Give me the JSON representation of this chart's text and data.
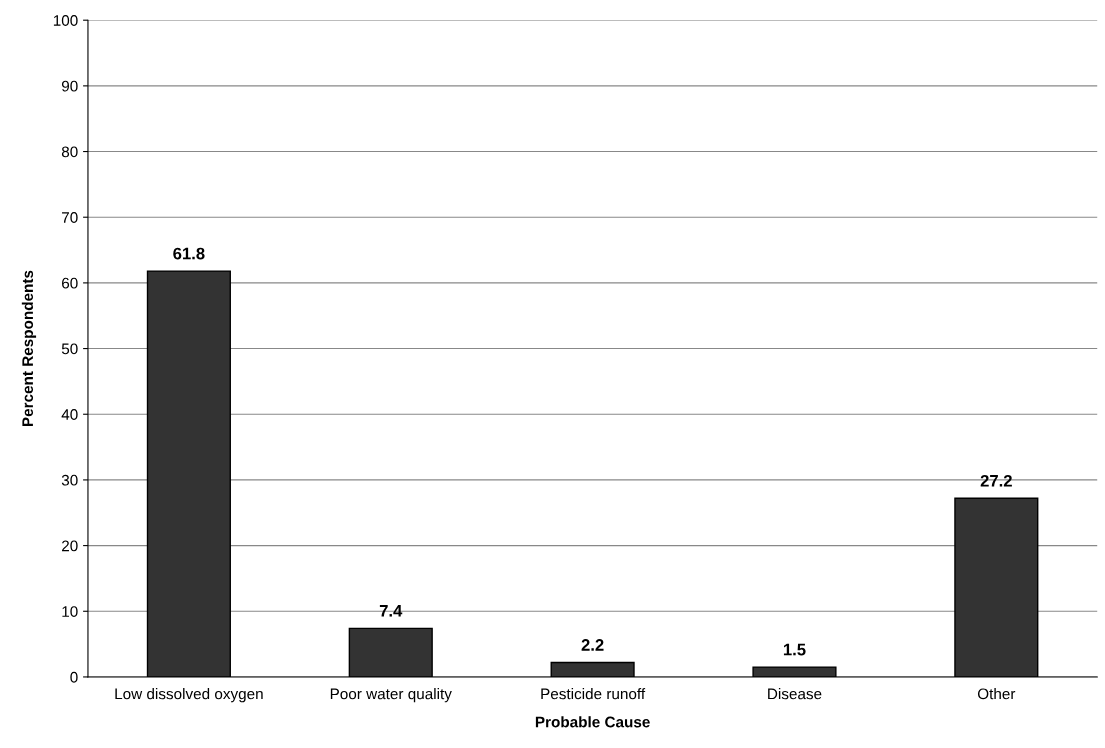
{
  "chart_data": {
    "type": "bar",
    "xlabel": "Probable Cause",
    "ylabel": "Percent Respondents",
    "categories": [
      "Low dissolved oxygen",
      "Poor water quality",
      "Pesticide runoff",
      "Disease",
      "Other"
    ],
    "values": [
      61.8,
      7.4,
      2.2,
      1.5,
      27.2
    ],
    "color": "#333333",
    "ylim": [
      0,
      100
    ],
    "yticks": [
      0,
      10,
      20,
      30,
      40,
      50,
      60,
      70,
      80,
      90,
      100
    ],
    "grid": "y",
    "data_labels": true
  }
}
